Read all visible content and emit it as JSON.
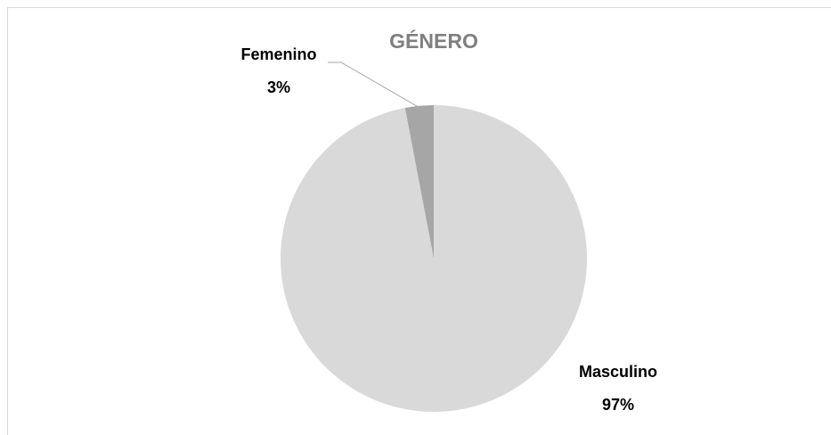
{
  "chart_data": {
    "type": "pie",
    "title": "GÉNERO",
    "categories": [
      "Masculino",
      "Femenino"
    ],
    "values": [
      97,
      3
    ],
    "value_labels": [
      "97%",
      "3%"
    ],
    "colors": [
      "#d9d9d9",
      "#a6a6a6"
    ]
  }
}
